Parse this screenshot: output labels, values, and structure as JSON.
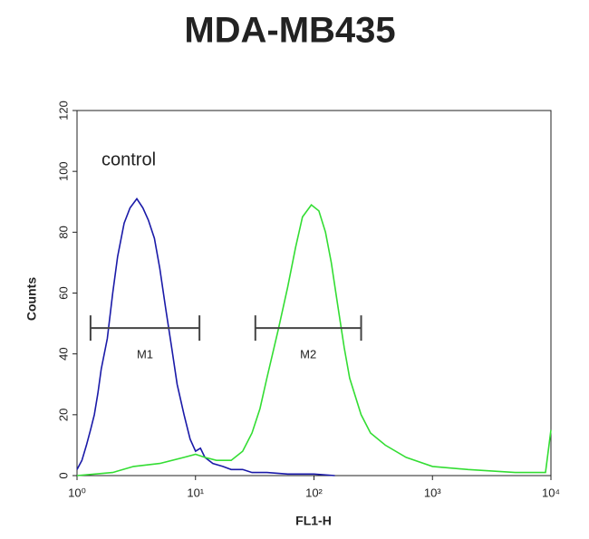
{
  "chart_data": {
    "type": "histogram-line",
    "title": "MDA-MB435",
    "x_label": "FL1-H",
    "y_label": "Counts",
    "annotation": "control",
    "xscale": "log",
    "xlim": [
      1,
      10000
    ],
    "xticks": [
      {
        "value": 1,
        "label": "10⁰"
      },
      {
        "value": 10,
        "label": "10¹"
      },
      {
        "value": 100,
        "label": "10²"
      },
      {
        "value": 1000,
        "label": "10³"
      },
      {
        "value": 10000,
        "label": "10⁴"
      }
    ],
    "ylim": [
      0,
      120
    ],
    "yticks": [
      0,
      20,
      40,
      60,
      80,
      100,
      120
    ],
    "series": [
      {
        "color": "#1a1aa8",
        "x": [
          1.0,
          1.1,
          1.2,
          1.3,
          1.4,
          1.5,
          1.6,
          1.8,
          2.0,
          2.2,
          2.5,
          2.8,
          3.2,
          3.6,
          4.0,
          4.5,
          5.0,
          5.6,
          6.3,
          7.0,
          8.0,
          9.0,
          10,
          11,
          12,
          14,
          17,
          20,
          25,
          30,
          40,
          60,
          100,
          150
        ],
        "values": [
          2,
          5,
          10,
          15,
          20,
          27,
          35,
          45,
          60,
          72,
          83,
          88,
          91,
          88,
          84,
          78,
          68,
          55,
          42,
          30,
          20,
          12,
          8,
          9,
          6,
          4,
          3,
          2,
          2,
          1,
          1,
          0.5,
          0.5,
          0
        ]
      },
      {
        "color": "#33dd33",
        "x": [
          1,
          2,
          3,
          5,
          8,
          10,
          12,
          15,
          20,
          25,
          30,
          35,
          40,
          50,
          60,
          70,
          80,
          95,
          110,
          125,
          140,
          160,
          180,
          200,
          250,
          300,
          400,
          600,
          1000,
          2000,
          5000,
          9000,
          10000
        ],
        "values": [
          0,
          1,
          3,
          4,
          6,
          7,
          6,
          5,
          5,
          8,
          14,
          22,
          32,
          48,
          62,
          75,
          85,
          89,
          87,
          80,
          70,
          55,
          42,
          32,
          20,
          14,
          10,
          6,
          3,
          2,
          1,
          1,
          15
        ]
      }
    ],
    "markers": [
      {
        "label": "M1",
        "x": [
          1.3,
          10.8
        ],
        "y": 48.5
      },
      {
        "label": "M2",
        "x": [
          32,
          250
        ],
        "y": 48.5
      }
    ]
  }
}
